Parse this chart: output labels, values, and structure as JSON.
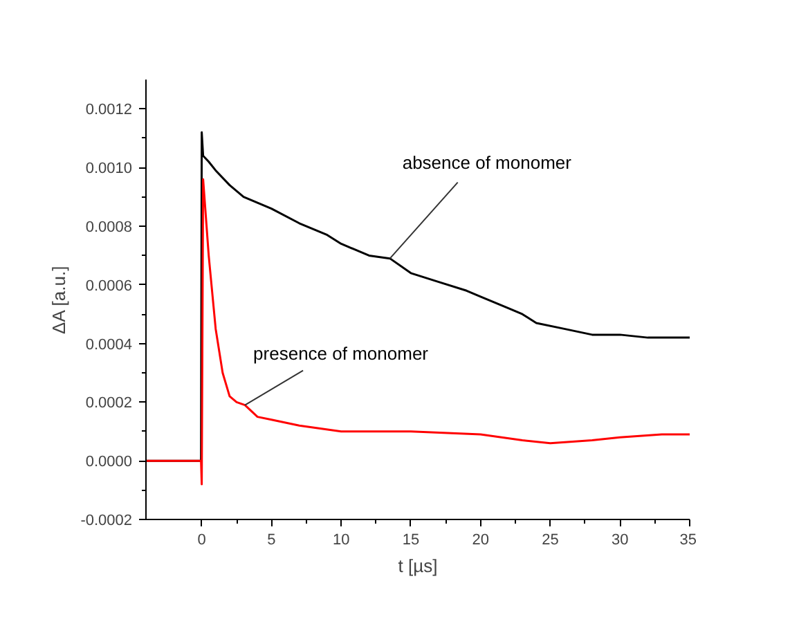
{
  "chart_data": {
    "type": "line",
    "xlabel": "t [µs]",
    "ylabel": "ΔA [a.u.]",
    "xlim": [
      -4,
      35
    ],
    "ylim": [
      -0.0002,
      0.0013
    ],
    "xticks": [
      0,
      5,
      10,
      15,
      20,
      25,
      30,
      35
    ],
    "yticks": [
      {
        "value": -0.0002,
        "label": "-0.0002"
      },
      {
        "value": 0,
        "label": "0.0000"
      },
      {
        "value": 0.0002,
        "label": "0.0002"
      },
      {
        "value": 0.0004,
        "label": "0.0004"
      },
      {
        "value": 0.0006,
        "label": "0.0006"
      },
      {
        "value": 0.0008,
        "label": "0.0008"
      },
      {
        "value": 0.001,
        "label": "0.0010"
      },
      {
        "value": 0.0012,
        "label": "0.0012"
      }
    ],
    "grid": false,
    "line_style": "solid",
    "marker": "none",
    "series": [
      {
        "color": "#000000",
        "x": [
          -4,
          -3,
          -2,
          -1,
          -0.05,
          0,
          0.1,
          0.5,
          1,
          2,
          3,
          4,
          5,
          7,
          9,
          10,
          12,
          13.5,
          15,
          17,
          19,
          20,
          22,
          23,
          24,
          26,
          27,
          28,
          30,
          32,
          34,
          35
        ],
        "values": [
          0.0,
          0.0,
          0.0,
          0.0,
          0.0,
          0.00112,
          0.00104,
          0.00102,
          0.00099,
          0.00094,
          0.0009,
          0.00088,
          0.00086,
          0.00081,
          0.00077,
          0.00074,
          0.0007,
          0.00069,
          0.00064,
          0.00061,
          0.00058,
          0.00056,
          0.00052,
          0.0005,
          0.00047,
          0.00045,
          0.00044,
          0.00043,
          0.00043,
          0.00042,
          0.00042,
          0.00042
        ]
      },
      {
        "color": "#ff0000",
        "x": [
          -4,
          -3,
          -2,
          -1,
          -0.05,
          0,
          0.1,
          0.5,
          1,
          1.5,
          2,
          2.5,
          3.1,
          4,
          5,
          7,
          10,
          15,
          20,
          23,
          25,
          28,
          30,
          33,
          35
        ],
        "values": [
          0.0,
          0.0,
          0.0,
          0.0,
          0.0,
          -8e-05,
          0.00096,
          0.0007,
          0.00045,
          0.0003,
          0.00022,
          0.0002,
          0.00019,
          0.00015,
          0.00014,
          0.00012,
          0.0001,
          0.0001,
          9e-05,
          7e-05,
          6e-05,
          7e-05,
          8e-05,
          9e-05,
          9e-05
        ]
      }
    ],
    "annotations": [
      {
        "text": "absence of monomer",
        "x": 13.5,
        "y": 0.00069
      },
      {
        "text": "presence of monomer",
        "x": 3.1,
        "y": 0.00019
      }
    ]
  }
}
